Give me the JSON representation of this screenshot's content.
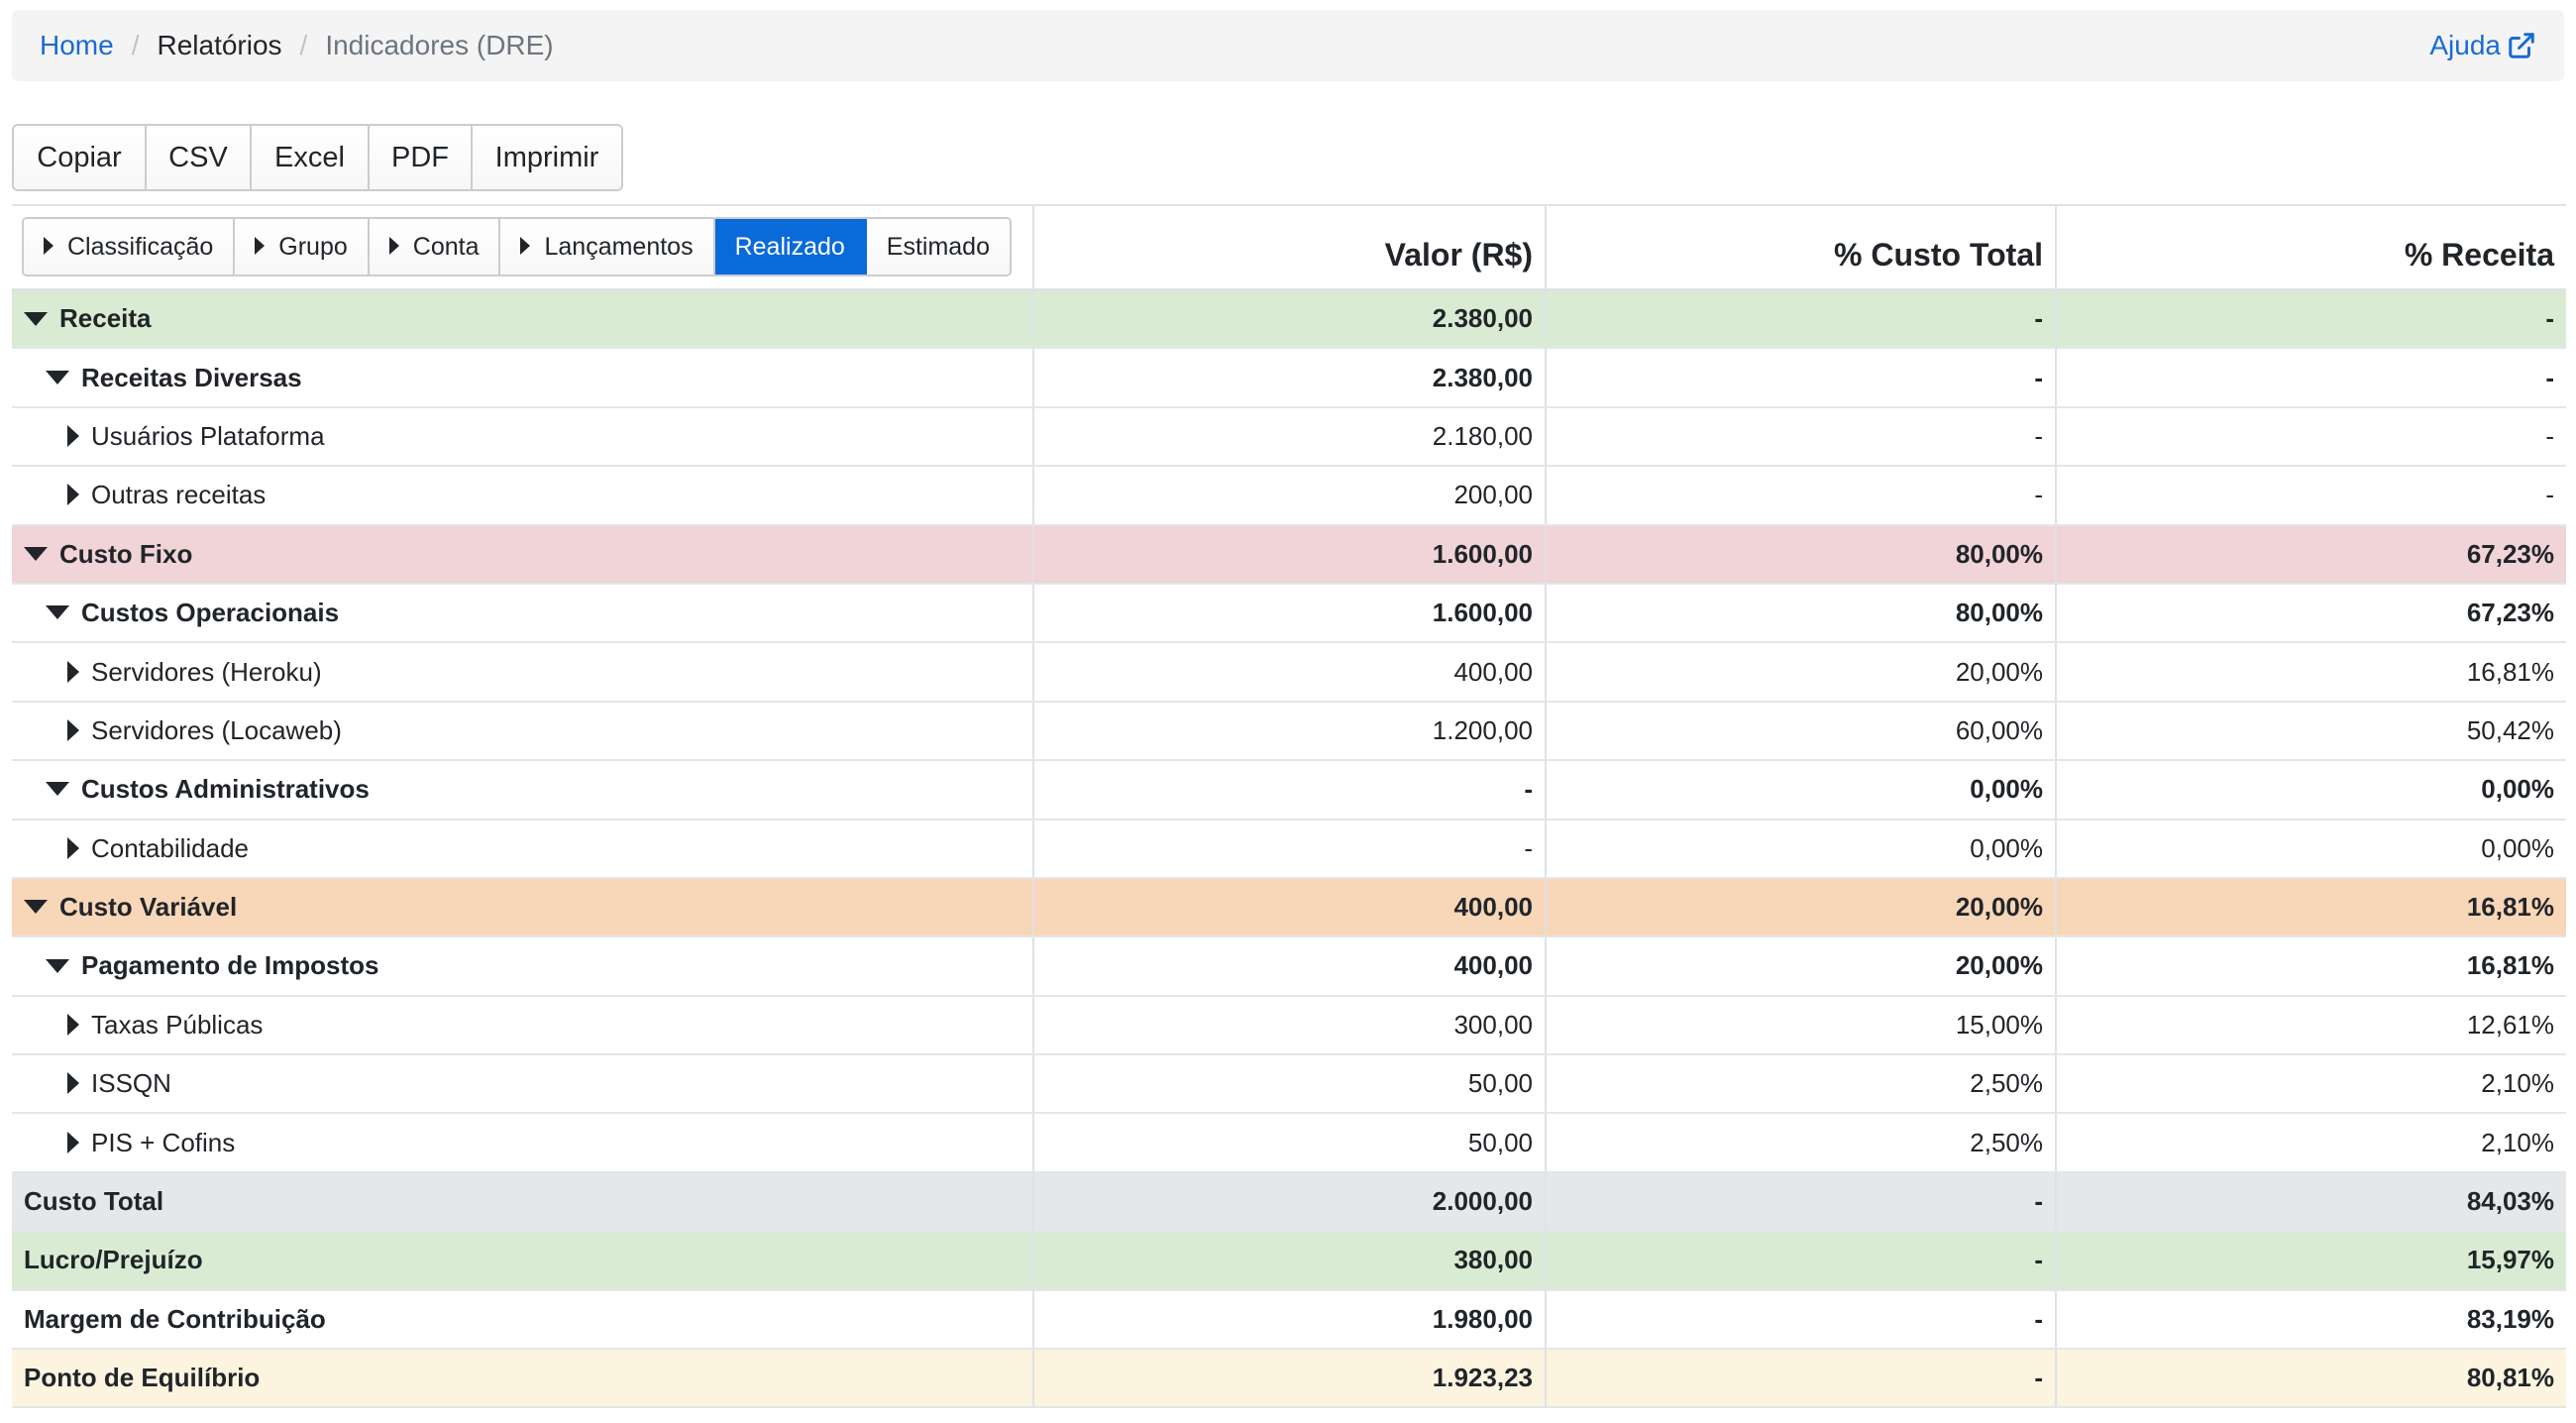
{
  "breadcrumb": {
    "home": "Home",
    "reports": "Relatórios",
    "current": "Indicadores (DRE)",
    "help": "Ajuda"
  },
  "export_buttons": [
    "Copiar",
    "CSV",
    "Excel",
    "PDF",
    "Imprimir"
  ],
  "level_buttons": [
    {
      "label": "Classificação",
      "caret": true,
      "active": false
    },
    {
      "label": "Grupo",
      "caret": true,
      "active": false
    },
    {
      "label": "Conta",
      "caret": true,
      "active": false
    },
    {
      "label": "Lançamentos",
      "caret": true,
      "active": false
    },
    {
      "label": "Realizado",
      "caret": false,
      "active": true
    },
    {
      "label": "Estimado",
      "caret": false,
      "active": false
    }
  ],
  "table": {
    "headers": [
      "Valor (R$)",
      "% Custo Total",
      "% Receita"
    ],
    "rows": [
      {
        "label": "Receita",
        "level": 0,
        "caret": "down",
        "bold": true,
        "bg": "green",
        "valor": "2.380,00",
        "custo": "-",
        "receita": "-"
      },
      {
        "label": "Receitas Diversas",
        "level": 1,
        "caret": "down",
        "bold": true,
        "bg": "",
        "valor": "2.380,00",
        "custo": "-",
        "receita": "-"
      },
      {
        "label": "Usuários Plataforma",
        "level": 2,
        "caret": "right",
        "bold": false,
        "bg": "",
        "valor": "2.180,00",
        "custo": "-",
        "receita": "-"
      },
      {
        "label": "Outras receitas",
        "level": 2,
        "caret": "right",
        "bold": false,
        "bg": "",
        "valor": "200,00",
        "custo": "-",
        "receita": "-"
      },
      {
        "label": "Custo Fixo",
        "level": 0,
        "caret": "down",
        "bold": true,
        "bg": "red",
        "valor": "1.600,00",
        "custo": "80,00%",
        "receita": "67,23%"
      },
      {
        "label": "Custos Operacionais",
        "level": 1,
        "caret": "down",
        "bold": true,
        "bg": "",
        "valor": "1.600,00",
        "custo": "80,00%",
        "receita": "67,23%"
      },
      {
        "label": "Servidores (Heroku)",
        "level": 2,
        "caret": "right",
        "bold": false,
        "bg": "",
        "valor": "400,00",
        "custo": "20,00%",
        "receita": "16,81%"
      },
      {
        "label": "Servidores (Locaweb)",
        "level": 2,
        "caret": "right",
        "bold": false,
        "bg": "",
        "valor": "1.200,00",
        "custo": "60,00%",
        "receita": "50,42%"
      },
      {
        "label": "Custos Administrativos",
        "level": 1,
        "caret": "down",
        "bold": true,
        "bg": "",
        "valor": "-",
        "custo": "0,00%",
        "receita": "0,00%"
      },
      {
        "label": "Contabilidade",
        "level": 2,
        "caret": "right",
        "bold": false,
        "bg": "",
        "valor": "-",
        "custo": "0,00%",
        "receita": "0,00%"
      },
      {
        "label": "Custo Variável",
        "level": 0,
        "caret": "down",
        "bold": true,
        "bg": "orange",
        "valor": "400,00",
        "custo": "20,00%",
        "receita": "16,81%"
      },
      {
        "label": "Pagamento de Impostos",
        "level": 1,
        "caret": "down",
        "bold": true,
        "bg": "",
        "valor": "400,00",
        "custo": "20,00%",
        "receita": "16,81%"
      },
      {
        "label": "Taxas Públicas",
        "level": 2,
        "caret": "right",
        "bold": false,
        "bg": "",
        "valor": "300,00",
        "custo": "15,00%",
        "receita": "12,61%"
      },
      {
        "label": "ISSQN",
        "level": 2,
        "caret": "right",
        "bold": false,
        "bg": "",
        "valor": "50,00",
        "custo": "2,50%",
        "receita": "2,10%"
      },
      {
        "label": "PIS + Cofins",
        "level": 2,
        "caret": "right",
        "bold": false,
        "bg": "",
        "valor": "50,00",
        "custo": "2,50%",
        "receita": "2,10%"
      },
      {
        "label": "Custo Total",
        "level": 0,
        "caret": "",
        "bold": true,
        "bg": "grey",
        "valor": "2.000,00",
        "custo": "-",
        "receita": "84,03%"
      },
      {
        "label": "Lucro/Prejuízo",
        "level": 0,
        "caret": "",
        "bold": true,
        "bg": "green",
        "valor": "380,00",
        "custo": "-",
        "receita": "15,97%"
      },
      {
        "label": "Margem de Contribuição",
        "level": 0,
        "caret": "",
        "bold": true,
        "bg": "",
        "valor": "1.980,00",
        "custo": "-",
        "receita": "83,19%"
      },
      {
        "label": "Ponto de Equilíbrio",
        "level": 0,
        "caret": "",
        "bold": true,
        "bg": "yellow",
        "valor": "1.923,23",
        "custo": "-",
        "receita": "80,81%"
      }
    ]
  },
  "colors": {
    "link": "#1a6bd1",
    "active_button": "#0a6ad9",
    "row_green": "#d9ecd3",
    "row_red": "#f0d4d7",
    "row_orange": "#f8d6b8",
    "row_grey": "#e6e7e9",
    "row_yellow": "#fcf4df"
  }
}
